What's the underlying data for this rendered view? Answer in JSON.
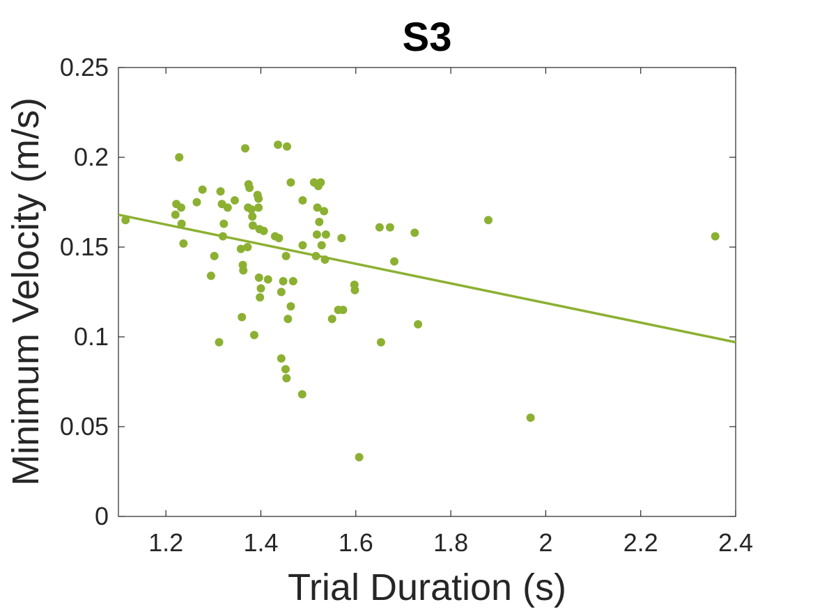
{
  "chart_data": {
    "type": "scatter",
    "title": "S3",
    "xlabel": "Trial Duration (s)",
    "ylabel": "Minimum Velocity (m/s)",
    "xlim": [
      1.1,
      2.4
    ],
    "ylim": [
      0,
      0.25
    ],
    "xticks": [
      1.2,
      1.4,
      1.6,
      1.8,
      2,
      2.2,
      2.4
    ],
    "xtick_labels": [
      "1.2",
      "1.4",
      "1.6",
      "1.8",
      "2",
      "2.2",
      "2.4"
    ],
    "yticks": [
      0,
      0.05,
      0.1,
      0.15,
      0.2,
      0.25
    ],
    "ytick_labels": [
      "0",
      "0.05",
      "0.1",
      "0.15",
      "0.2",
      "0.25"
    ],
    "grid": false,
    "box": true,
    "marker_color": "#8cb032",
    "line_color": "#8cb032",
    "fit_line": {
      "x": [
        1.1,
        2.4
      ],
      "y": [
        0.168,
        0.097
      ]
    },
    "points": [
      [
        1.115,
        0.165
      ],
      [
        1.22,
        0.168
      ],
      [
        1.222,
        0.174
      ],
      [
        1.228,
        0.2
      ],
      [
        1.232,
        0.172
      ],
      [
        1.233,
        0.163
      ],
      [
        1.237,
        0.152
      ],
      [
        1.265,
        0.175
      ],
      [
        1.277,
        0.182
      ],
      [
        1.295,
        0.134
      ],
      [
        1.302,
        0.145
      ],
      [
        1.312,
        0.097
      ],
      [
        1.315,
        0.181
      ],
      [
        1.318,
        0.174
      ],
      [
        1.32,
        0.156
      ],
      [
        1.322,
        0.163
      ],
      [
        1.33,
        0.172
      ],
      [
        1.345,
        0.176
      ],
      [
        1.358,
        0.149
      ],
      [
        1.36,
        0.111
      ],
      [
        1.362,
        0.14
      ],
      [
        1.363,
        0.137
      ],
      [
        1.367,
        0.205
      ],
      [
        1.372,
        0.15
      ],
      [
        1.373,
        0.172
      ],
      [
        1.374,
        0.185
      ],
      [
        1.376,
        0.183
      ],
      [
        1.38,
        0.171
      ],
      [
        1.382,
        0.167
      ],
      [
        1.383,
        0.162
      ],
      [
        1.386,
        0.101
      ],
      [
        1.393,
        0.179
      ],
      [
        1.395,
        0.177
      ],
      [
        1.395,
        0.172
      ],
      [
        1.396,
        0.133
      ],
      [
        1.397,
        0.16
      ],
      [
        1.398,
        0.122
      ],
      [
        1.4,
        0.127
      ],
      [
        1.406,
        0.159
      ],
      [
        1.415,
        0.132
      ],
      [
        1.43,
        0.156
      ],
      [
        1.436,
        0.207
      ],
      [
        1.438,
        0.155
      ],
      [
        1.443,
        0.125
      ],
      [
        1.443,
        0.088
      ],
      [
        1.447,
        0.131
      ],
      [
        1.452,
        0.082
      ],
      [
        1.453,
        0.145
      ],
      [
        1.454,
        0.077
      ],
      [
        1.455,
        0.206
      ],
      [
        1.457,
        0.11
      ],
      [
        1.463,
        0.186
      ],
      [
        1.463,
        0.117
      ],
      [
        1.468,
        0.131
      ],
      [
        1.487,
        0.068
      ],
      [
        1.488,
        0.176
      ],
      [
        1.488,
        0.151
      ],
      [
        1.512,
        0.186
      ],
      [
        1.516,
        0.145
      ],
      [
        1.518,
        0.157
      ],
      [
        1.519,
        0.172
      ],
      [
        1.521,
        0.184
      ],
      [
        1.523,
        0.164
      ],
      [
        1.526,
        0.186
      ],
      [
        1.528,
        0.151
      ],
      [
        1.533,
        0.17
      ],
      [
        1.535,
        0.143
      ],
      [
        1.537,
        0.157
      ],
      [
        1.55,
        0.11
      ],
      [
        1.563,
        0.115
      ],
      [
        1.57,
        0.155
      ],
      [
        1.573,
        0.115
      ],
      [
        1.597,
        0.129
      ],
      [
        1.598,
        0.126
      ],
      [
        1.607,
        0.033
      ],
      [
        1.65,
        0.161
      ],
      [
        1.653,
        0.097
      ],
      [
        1.672,
        0.161
      ],
      [
        1.681,
        0.142
      ],
      [
        1.724,
        0.158
      ],
      [
        1.731,
        0.107
      ],
      [
        1.879,
        0.165
      ],
      [
        1.968,
        0.055
      ],
      [
        2.357,
        0.156
      ]
    ]
  }
}
